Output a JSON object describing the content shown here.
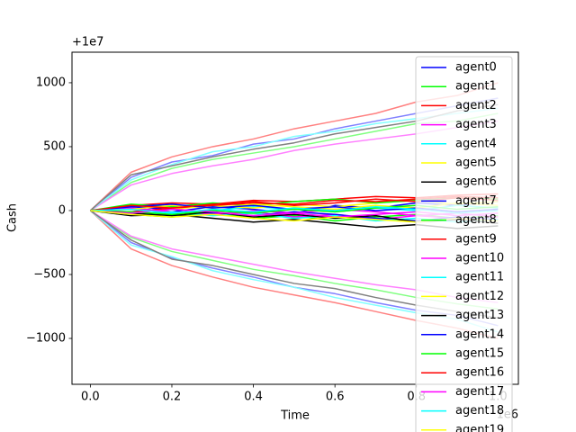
{
  "chart_data": {
    "type": "line",
    "x_label": "Time",
    "y_label": "Cash",
    "x_offset_label": "1e6",
    "y_offset_label": "+1e7",
    "x": [
      0,
      0.1,
      0.2,
      0.3,
      0.4,
      0.5,
      0.6,
      0.7,
      0.8,
      0.9,
      1.0
    ],
    "xlim": [
      -0.045,
      1.05
    ],
    "xticks": [
      {
        "value": 0,
        "label": "0.0"
      },
      {
        "value": 0.2,
        "label": "0.2"
      },
      {
        "value": 0.4,
        "label": "0.4"
      },
      {
        "value": 0.6,
        "label": "0.6"
      },
      {
        "value": 0.8,
        "label": "0.8"
      },
      {
        "value": 1.0,
        "label": "1.0"
      }
    ],
    "ylim": [
      -1359,
      1239
    ],
    "yticks": [
      {
        "value": -1000,
        "label": "−1000"
      },
      {
        "value": -500,
        "label": "−500"
      },
      0,
      500,
      1000
    ],
    "legend": "upper right",
    "series": [
      {
        "color": "#8080ff",
        "values": [
          0,
          260,
          380,
          430,
          520,
          560,
          640,
          700,
          760,
          820,
          880
        ]
      },
      {
        "color": "#80ff80",
        "values": [
          0,
          220,
          330,
          400,
          450,
          500,
          560,
          620,
          680,
          700,
          760
        ]
      },
      {
        "color": "#ff8080",
        "values": [
          0,
          300,
          420,
          500,
          560,
          640,
          700,
          760,
          850,
          900,
          1000
        ]
      },
      {
        "color": "#ff80ff",
        "values": [
          0,
          200,
          290,
          350,
          400,
          470,
          520,
          560,
          600,
          650,
          700
        ]
      },
      {
        "color": "#80ffff",
        "values": [
          0,
          240,
          360,
          460,
          500,
          580,
          620,
          680,
          720,
          760,
          800
        ]
      },
      {
        "color": "#808080",
        "values": [
          0,
          280,
          350,
          420,
          480,
          530,
          600,
          650,
          700,
          780,
          830
        ]
      },
      {
        "color": "#8080ff",
        "values": [
          0,
          -250,
          -370,
          -450,
          -520,
          -600,
          -650,
          -720,
          -780,
          -820,
          -900
        ]
      },
      {
        "color": "#80ff80",
        "values": [
          0,
          -210,
          -320,
          -390,
          -460,
          -510,
          -570,
          -620,
          -680,
          -730,
          -770
        ]
      },
      {
        "color": "#ff8080",
        "values": [
          0,
          -300,
          -430,
          -520,
          -600,
          -660,
          -720,
          -790,
          -860,
          -920,
          -1000
        ]
      },
      {
        "color": "#ff80ff",
        "values": [
          0,
          -200,
          -300,
          -360,
          -420,
          -480,
          -530,
          -580,
          -620,
          -680,
          -720
        ]
      },
      {
        "color": "#80ffff",
        "values": [
          0,
          -270,
          -360,
          -470,
          -540,
          -600,
          -680,
          -740,
          -800,
          -850,
          -950
        ]
      },
      {
        "color": "#808080",
        "values": [
          0,
          -230,
          -380,
          -430,
          -500,
          -570,
          -610,
          -680,
          -740,
          -790,
          -840
        ]
      },
      {
        "name": "agent0",
        "color": "#0000ff",
        "values": [
          0,
          20,
          -10,
          30,
          10,
          -20,
          40,
          20,
          60,
          40,
          70
        ]
      },
      {
        "name": "agent1",
        "color": "#00ff00",
        "values": [
          0,
          -30,
          -50,
          -20,
          -60,
          -40,
          -80,
          -50,
          -30,
          -60,
          -40
        ]
      },
      {
        "name": "agent2",
        "color": "#ff0000",
        "values": [
          0,
          40,
          60,
          50,
          80,
          70,
          90,
          110,
          100,
          120,
          130
        ]
      },
      {
        "name": "agent3",
        "color": "#ff00ff",
        "values": [
          0,
          -10,
          20,
          -30,
          -10,
          -50,
          -30,
          -70,
          -40,
          -60,
          -80
        ]
      },
      {
        "name": "agent4",
        "color": "#00ffff",
        "values": [
          0,
          10,
          -20,
          0,
          30,
          10,
          -10,
          20,
          0,
          40,
          20
        ]
      },
      {
        "name": "agent5",
        "color": "#ffff00",
        "values": [
          0,
          -20,
          10,
          40,
          20,
          50,
          30,
          60,
          80,
          50,
          70
        ]
      },
      {
        "name": "agent6",
        "color": "#000000",
        "values": [
          0,
          -40,
          -30,
          -60,
          -90,
          -70,
          -100,
          -130,
          -110,
          -140,
          -120
        ]
      },
      {
        "name": "agent7",
        "color": "#0000ff",
        "values": [
          0,
          30,
          10,
          -20,
          -40,
          -10,
          -30,
          -60,
          -80,
          -50,
          -70
        ]
      },
      {
        "name": "agent8",
        "color": "#00ff00",
        "values": [
          0,
          50,
          30,
          60,
          40,
          70,
          90,
          60,
          80,
          100,
          90
        ]
      },
      {
        "name": "agent9",
        "color": "#ff0000",
        "values": [
          0,
          -10,
          20,
          40,
          60,
          50,
          80,
          70,
          90,
          110,
          100
        ]
      },
      {
        "name": "agent10",
        "color": "#ff00ff",
        "values": [
          0,
          20,
          -10,
          -30,
          0,
          -20,
          10,
          -10,
          -40,
          -20,
          -50
        ]
      },
      {
        "name": "agent11",
        "color": "#00ffff",
        "values": [
          0,
          -30,
          -10,
          -40,
          -20,
          -60,
          -40,
          -80,
          -60,
          -90,
          -70
        ]
      },
      {
        "name": "agent12",
        "color": "#ffff00",
        "values": [
          0,
          10,
          40,
          20,
          50,
          30,
          10,
          40,
          20,
          60,
          40
        ]
      },
      {
        "name": "agent13",
        "color": "#000000",
        "values": [
          0,
          -20,
          -40,
          -10,
          -50,
          -30,
          -60,
          -40,
          -90,
          -70,
          -100
        ]
      },
      {
        "name": "agent14",
        "color": "#0000ff",
        "values": [
          0,
          30,
          50,
          20,
          40,
          10,
          30,
          0,
          20,
          -10,
          10
        ]
      },
      {
        "name": "agent15",
        "color": "#00ff00",
        "values": [
          0,
          -10,
          -30,
          0,
          -20,
          10,
          -10,
          20,
          40,
          10,
          30
        ]
      },
      {
        "name": "agent16",
        "color": "#ff0000",
        "values": [
          0,
          40,
          20,
          50,
          70,
          40,
          60,
          90,
          70,
          100,
          80
        ]
      },
      {
        "name": "agent17",
        "color": "#ff00ff",
        "values": [
          0,
          -20,
          10,
          -10,
          -40,
          -20,
          -50,
          -30,
          -10,
          -40,
          -20
        ]
      },
      {
        "name": "agent18",
        "color": "#00ffff",
        "values": [
          0,
          10,
          -20,
          10,
          -10,
          20,
          0,
          30,
          10,
          -20,
          0
        ]
      },
      {
        "name": "agent19",
        "color": "#ffff00",
        "values": [
          0,
          -30,
          -50,
          -30,
          -60,
          -80,
          -50,
          -70,
          -90,
          -60,
          -80
        ]
      }
    ]
  }
}
